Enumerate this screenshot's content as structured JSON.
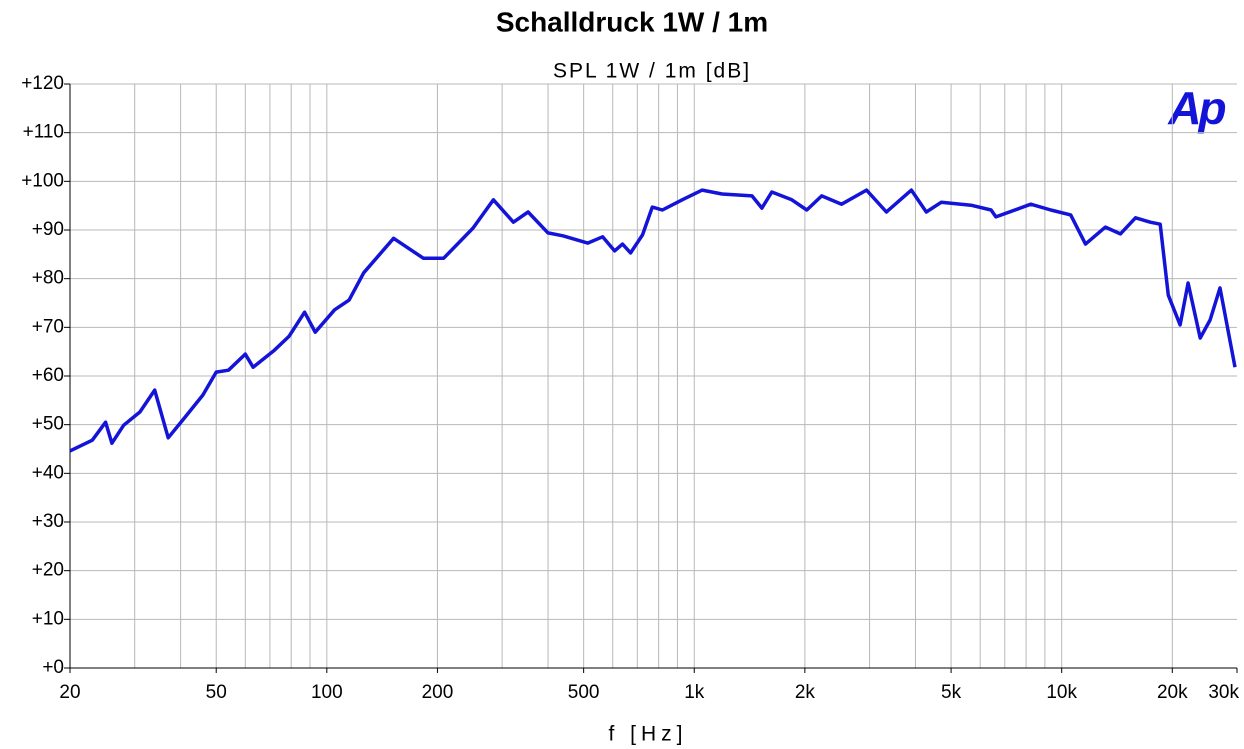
{
  "chart_data": {
    "type": "line",
    "title": "Schalldruck 1W / 1m",
    "subtitle": "SPL 1W / 1m [dB]",
    "x_label": "f [Hz]",
    "logo": "Ap",
    "x": [
      20,
      23,
      25,
      26,
      28,
      31,
      34,
      37,
      41,
      46,
      50,
      54,
      60,
      63,
      72,
      79,
      87,
      93,
      105,
      115,
      126,
      152,
      183,
      208,
      250,
      284,
      322,
      353,
      400,
      439,
      513,
      563,
      607,
      638,
      671,
      723,
      769,
      819,
      927,
      1051,
      1191,
      1436,
      1528,
      1626,
      1843,
      2024,
      2223,
      2518,
      2942,
      3334,
      3898,
      4280,
      4700,
      5666,
      6424,
      6622,
      8240,
      9340,
      10580,
      11610,
      13150,
      14450,
      15880,
      17420,
      18540,
      19500,
      21000,
      22080,
      23820,
      25340,
      26970,
      29630
    ],
    "values": [
      44.6,
      46.8,
      50.5,
      46.2,
      49.9,
      52.6,
      57.1,
      47.3,
      51.4,
      56.1,
      60.8,
      61.2,
      64.5,
      61.8,
      65.3,
      68.2,
      73.1,
      69.0,
      73.6,
      75.6,
      81.2,
      88.3,
      84.2,
      84.2,
      90.4,
      96.2,
      91.6,
      93.7,
      89.4,
      88.8,
      87.3,
      88.6,
      85.7,
      87.1,
      85.3,
      89.0,
      94.7,
      94.1,
      96.2,
      98.2,
      97.4,
      97.0,
      94.5,
      97.8,
      96.2,
      94.1,
      97.0,
      95.3,
      98.2,
      93.7,
      98.2,
      93.7,
      95.7,
      95.1,
      94.1,
      92.7,
      95.3,
      94.1,
      93.1,
      87.1,
      90.6,
      89.2,
      92.5,
      91.6,
      91.2,
      76.6,
      70.5,
      79.1,
      67.8,
      71.5,
      78.1,
      61.8
    ],
    "color": "#1414d8",
    "xscale": "log",
    "xlim": [
      20,
      30000
    ],
    "xticks": [
      20,
      50,
      100,
      200,
      500,
      {
        "value": 1000,
        "label": "1k"
      },
      {
        "value": 2000,
        "label": "2k"
      },
      {
        "value": 5000,
        "label": "5k"
      },
      {
        "value": 10000,
        "label": "10k"
      },
      {
        "value": 20000,
        "label": "20k"
      },
      {
        "value": 30000,
        "label": "30k"
      }
    ],
    "xgrid": [
      30,
      40,
      60,
      70,
      80,
      90,
      300,
      400,
      600,
      700,
      800,
      900,
      3000,
      4000,
      6000,
      7000,
      8000,
      9000
    ],
    "ylim": [
      0,
      120
    ],
    "yticks": [
      {
        "value": 0,
        "label": "+0"
      },
      {
        "value": 10,
        "label": "+10"
      },
      {
        "value": 20,
        "label": "+20"
      },
      {
        "value": 30,
        "label": "+30"
      },
      {
        "value": 40,
        "label": "+40"
      },
      {
        "value": 50,
        "label": "+50"
      },
      {
        "value": 60,
        "label": "+60"
      },
      {
        "value": 70,
        "label": "+70"
      },
      {
        "value": 80,
        "label": "+80"
      },
      {
        "value": 90,
        "label": "+90"
      },
      {
        "value": 100,
        "label": "+100"
      },
      {
        "value": 110,
        "label": "+110"
      },
      {
        "value": 120,
        "label": "+120"
      }
    ],
    "grid": true
  }
}
